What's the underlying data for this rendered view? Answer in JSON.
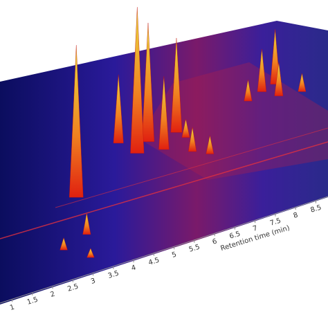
{
  "chart_data": {
    "type": "surface3d",
    "x_label": "Retention time (min)",
    "xlim": [
      0.7,
      8.8
    ],
    "xticks": [
      1,
      1.5,
      2,
      2.5,
      3,
      3.5,
      4,
      4.5,
      5,
      5.5,
      6,
      6.5,
      7,
      7.5,
      8,
      8.5
    ],
    "peaks": {
      "x": [
        1.9,
        2.6,
        3.0,
        3.2,
        3.4,
        3.9,
        4.1,
        4.4,
        4.7,
        5.2,
        5.8,
        6.1,
        6.4,
        6.6,
        7.2,
        2.0,
        2.5,
        2.8
      ],
      "y": [
        0.5,
        0.75,
        0.8,
        0.65,
        0.7,
        0.62,
        0.7,
        0.65,
        0.55,
        0.5,
        0.75,
        0.78,
        0.8,
        0.72,
        0.7,
        0.2,
        0.25,
        0.1
      ],
      "values": [
        100,
        45,
        32,
        96,
        78,
        48,
        62,
        12,
        16,
        12,
        14,
        28,
        36,
        22,
        12,
        8,
        14,
        6
      ]
    }
  }
}
